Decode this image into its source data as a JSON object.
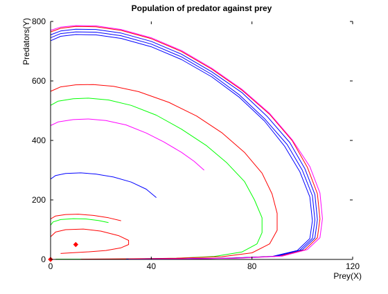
{
  "chart_data": {
    "type": "line",
    "title": "Population of predator against prey",
    "xlabel": "Prey(X)",
    "ylabel": "Predators(Y)",
    "xlim": [
      0,
      120
    ],
    "ylim": [
      0,
      800
    ],
    "xticks": [
      "0",
      "40",
      "80",
      "120"
    ],
    "yticks": [
      "0",
      "200",
      "400",
      "600",
      "800"
    ],
    "grid": false,
    "legend": "none",
    "colors": {
      "red": "#ff0000",
      "green": "#00ff00",
      "blue": "#0000ff",
      "magenta": "#ff00ff",
      "axis": "#000000"
    },
    "series": [
      {
        "color": "red",
        "points": [
          [
            4,
            20
          ],
          [
            8,
            22
          ],
          [
            14,
            25
          ],
          [
            22,
            30
          ],
          [
            28,
            39
          ],
          [
            31,
            50
          ],
          [
            31,
            64
          ],
          [
            27,
            80
          ],
          [
            20,
            95
          ],
          [
            13,
            102
          ],
          [
            6,
            100
          ],
          [
            2,
            92
          ],
          [
            1,
            84
          ],
          [
            0,
            76
          ]
        ]
      },
      {
        "color": "green",
        "points": [
          [
            0,
            115
          ],
          [
            1,
            126
          ],
          [
            4,
            134
          ],
          [
            9,
            137
          ],
          [
            14,
            136
          ],
          [
            19,
            131
          ],
          [
            23,
            124
          ]
        ]
      },
      {
        "color": "red",
        "points": [
          [
            0,
            136
          ],
          [
            2,
            146
          ],
          [
            6,
            151
          ],
          [
            11,
            152
          ],
          [
            17,
            148
          ],
          [
            23,
            140
          ],
          [
            28,
            130
          ]
        ]
      },
      {
        "color": "blue",
        "points": [
          [
            0,
            270
          ],
          [
            2,
            282
          ],
          [
            6,
            289
          ],
          [
            12,
            291
          ],
          [
            18,
            287
          ],
          [
            25,
            277
          ],
          [
            32,
            260
          ],
          [
            38,
            236
          ],
          [
            42,
            208
          ]
        ]
      },
      {
        "color": "magenta",
        "points": [
          [
            0,
            450
          ],
          [
            3,
            462
          ],
          [
            9,
            470
          ],
          [
            15,
            472
          ],
          [
            22,
            467
          ],
          [
            30,
            452
          ],
          [
            38,
            425
          ],
          [
            45,
            395
          ],
          [
            52,
            360
          ],
          [
            57,
            330
          ],
          [
            61,
            300
          ]
        ]
      },
      {
        "color": "green",
        "points": [
          [
            0,
            518
          ],
          [
            3,
            532
          ],
          [
            9,
            540
          ],
          [
            15,
            542
          ],
          [
            23,
            536
          ],
          [
            32,
            518
          ],
          [
            42,
            485
          ],
          [
            52,
            438
          ],
          [
            62,
            382
          ],
          [
            70,
            325
          ],
          [
            77,
            262
          ],
          [
            81,
            200
          ],
          [
            84,
            140
          ],
          [
            84,
            90
          ],
          [
            82,
            52
          ],
          [
            76,
            25
          ],
          [
            65,
            10
          ],
          [
            50,
            4
          ],
          [
            35,
            2
          ],
          [
            20,
            1
          ],
          [
            8,
            1
          ],
          [
            2,
            1
          ]
        ]
      },
      {
        "color": "red",
        "points": [
          [
            0,
            565
          ],
          [
            4,
            580
          ],
          [
            10,
            587
          ],
          [
            17,
            588
          ],
          [
            25,
            582
          ],
          [
            35,
            564
          ],
          [
            47,
            528
          ],
          [
            58,
            482
          ],
          [
            68,
            426
          ],
          [
            77,
            360
          ],
          [
            84,
            290
          ],
          [
            88,
            220
          ],
          [
            90,
            155
          ],
          [
            90,
            98
          ],
          [
            87,
            52
          ],
          [
            80,
            22
          ],
          [
            68,
            9
          ],
          [
            50,
            4
          ],
          [
            30,
            2
          ],
          [
            12,
            1
          ]
        ]
      },
      {
        "color": "blue",
        "points": [
          [
            0,
            735
          ],
          [
            4,
            750
          ],
          [
            10,
            756
          ],
          [
            18,
            755
          ],
          [
            28,
            743
          ],
          [
            40,
            715
          ],
          [
            52,
            672
          ],
          [
            64,
            614
          ],
          [
            75,
            545
          ],
          [
            85,
            465
          ],
          [
            93,
            380
          ],
          [
            99,
            295
          ],
          [
            103,
            210
          ],
          [
            104,
            130
          ],
          [
            103,
            70
          ],
          [
            98,
            30
          ],
          [
            88,
            10
          ],
          [
            70,
            4
          ],
          [
            50,
            2
          ],
          [
            30,
            1
          ]
        ]
      },
      {
        "color": "blue",
        "points": [
          [
            0,
            745
          ],
          [
            4,
            759
          ],
          [
            10,
            765
          ],
          [
            18,
            764
          ],
          [
            28,
            752
          ],
          [
            40,
            724
          ],
          [
            52,
            681
          ],
          [
            64,
            622
          ],
          [
            75,
            553
          ],
          [
            85,
            473
          ],
          [
            94,
            386
          ],
          [
            100,
            300
          ],
          [
            104,
            214
          ],
          [
            105,
            132
          ],
          [
            104,
            71
          ],
          [
            99,
            31
          ],
          [
            89,
            10
          ],
          [
            71,
            4
          ],
          [
            50,
            2
          ],
          [
            30,
            1
          ]
        ]
      },
      {
        "color": "blue",
        "points": [
          [
            0,
            755
          ],
          [
            4,
            768
          ],
          [
            10,
            774
          ],
          [
            18,
            773
          ],
          [
            28,
            761
          ],
          [
            40,
            733
          ],
          [
            52,
            690
          ],
          [
            64,
            631
          ],
          [
            76,
            561
          ],
          [
            86,
            481
          ],
          [
            95,
            393
          ],
          [
            101,
            305
          ],
          [
            105,
            218
          ],
          [
            106,
            134
          ],
          [
            105,
            72
          ],
          [
            100,
            32
          ],
          [
            90,
            11
          ],
          [
            72,
            4
          ],
          [
            51,
            2
          ],
          [
            30,
            1
          ]
        ]
      },
      {
        "color": "red",
        "points": [
          [
            0,
            765
          ],
          [
            4,
            777
          ],
          [
            10,
            783
          ],
          [
            18,
            782
          ],
          [
            28,
            770
          ],
          [
            40,
            742
          ],
          [
            52,
            699
          ],
          [
            64,
            640
          ],
          [
            76,
            569
          ],
          [
            87,
            488
          ],
          [
            96,
            399
          ],
          [
            102,
            310
          ],
          [
            106,
            221
          ],
          [
            107,
            136
          ],
          [
            106,
            73
          ],
          [
            101,
            32
          ],
          [
            91,
            11
          ],
          [
            73,
            4
          ],
          [
            52,
            2
          ],
          [
            31,
            1
          ]
        ]
      },
      {
        "color": "magenta",
        "points": [
          [
            0,
            770
          ],
          [
            4,
            781
          ],
          [
            10,
            786
          ],
          [
            18,
            785
          ],
          [
            28,
            773
          ],
          [
            40,
            745
          ],
          [
            52,
            702
          ],
          [
            64,
            643
          ],
          [
            76,
            572
          ],
          [
            87,
            491
          ],
          [
            96,
            402
          ],
          [
            103,
            312
          ],
          [
            107,
            223
          ],
          [
            108,
            137
          ],
          [
            107,
            73
          ],
          [
            102,
            33
          ],
          [
            92,
            11
          ],
          [
            74,
            4
          ],
          [
            52,
            2
          ],
          [
            31,
            1
          ]
        ]
      },
      {
        "color": "magenta",
        "points": [
          [
            0,
            0
          ],
          [
            0,
            785
          ]
        ]
      }
    ],
    "markers": [
      {
        "x": 10,
        "y": 50,
        "color": "red"
      },
      {
        "x": 0,
        "y": 0,
        "color": "red"
      }
    ]
  }
}
